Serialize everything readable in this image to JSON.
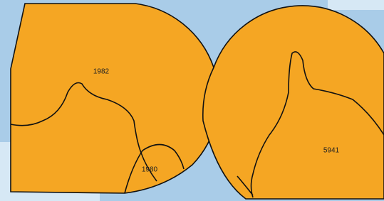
{
  "regions": [
    {
      "label": "1982"
    },
    {
      "label": "1980"
    },
    {
      "label": "5941"
    }
  ]
}
